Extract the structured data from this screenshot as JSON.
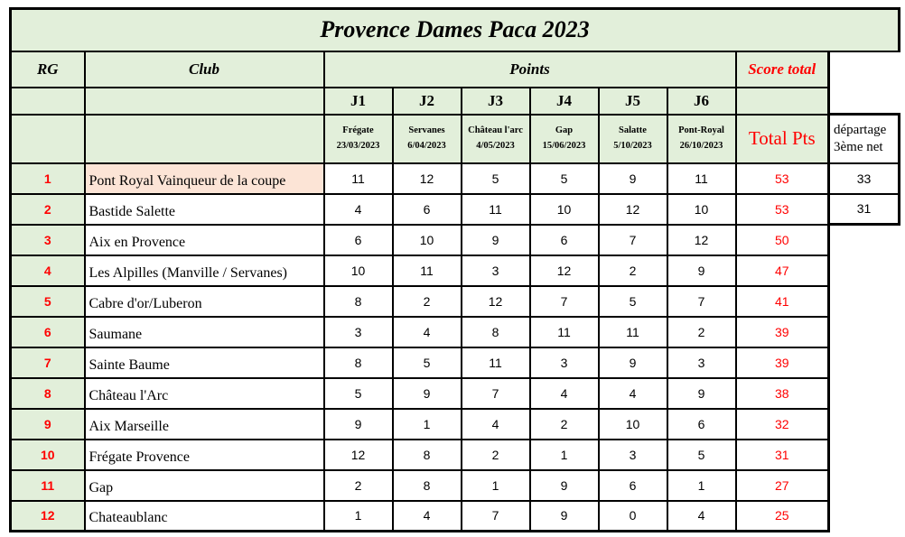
{
  "title": "Provence Dames Paca 2023",
  "colors": {
    "header_green": "#e2efda",
    "highlight_peach": "#fce4d6",
    "accent_red": "#ff0000",
    "border": "#000000"
  },
  "header": {
    "rg": "RG",
    "club": "Club",
    "points": "Points",
    "score_total": "Score total",
    "total_pts": "Total Pts",
    "tiebreak_line1": "départage",
    "tiebreak_line2": "3ème net",
    "rounds": [
      {
        "label": "J1",
        "venue": "Frégate",
        "date": "23/03/2023"
      },
      {
        "label": "J2",
        "venue": "Servanes",
        "date": "6/04/2023"
      },
      {
        "label": "J3",
        "venue": "Château l'arc",
        "date": "4/05/2023"
      },
      {
        "label": "J4",
        "venue": "Gap",
        "date": "15/06/2023"
      },
      {
        "label": "J5",
        "venue": "Salatte",
        "date": "5/10/2023"
      },
      {
        "label": "J6",
        "venue": "Pont-Royal",
        "date": "26/10/2023"
      }
    ]
  },
  "standings": [
    {
      "rank": "1",
      "club": "Pont Royal Vainqueur de la coupe",
      "points": [
        11,
        12,
        5,
        5,
        9,
        11
      ],
      "total": 53,
      "tiebreak": "33",
      "highlight": true
    },
    {
      "rank": "2",
      "club": "Bastide Salette",
      "points": [
        4,
        6,
        11,
        10,
        12,
        10
      ],
      "total": 53,
      "tiebreak": "31",
      "highlight": false
    },
    {
      "rank": "3",
      "club": "Aix en Provence",
      "points": [
        6,
        10,
        9,
        6,
        7,
        12
      ],
      "total": 50,
      "tiebreak": null,
      "highlight": false
    },
    {
      "rank": "4",
      "club": "Les Alpilles (Manville / Servanes)",
      "points": [
        10,
        11,
        3,
        12,
        2,
        9
      ],
      "total": 47,
      "tiebreak": null,
      "highlight": false
    },
    {
      "rank": "5",
      "club": "Cabre d'or/Luberon",
      "points": [
        8,
        2,
        12,
        7,
        5,
        7
      ],
      "total": 41,
      "tiebreak": null,
      "highlight": false
    },
    {
      "rank": "6",
      "club": "Saumane",
      "points": [
        3,
        4,
        8,
        11,
        11,
        2
      ],
      "total": 39,
      "tiebreak": null,
      "highlight": false
    },
    {
      "rank": "7",
      "club": "Sainte Baume",
      "points": [
        8,
        5,
        11,
        3,
        9,
        3
      ],
      "total": 39,
      "tiebreak": null,
      "highlight": false
    },
    {
      "rank": "8",
      "club": "Château l'Arc",
      "points": [
        5,
        9,
        7,
        4,
        4,
        9
      ],
      "total": 38,
      "tiebreak": null,
      "highlight": false
    },
    {
      "rank": "9",
      "club": "Aix Marseille",
      "points": [
        9,
        1,
        4,
        2,
        10,
        6
      ],
      "total": 32,
      "tiebreak": null,
      "highlight": false
    },
    {
      "rank": "10",
      "club": "Frégate Provence",
      "points": [
        12,
        8,
        2,
        1,
        3,
        5
      ],
      "total": 31,
      "tiebreak": null,
      "highlight": false
    },
    {
      "rank": "11",
      "club": "Gap",
      "points": [
        2,
        8,
        1,
        9,
        6,
        1
      ],
      "total": 27,
      "tiebreak": null,
      "highlight": false
    },
    {
      "rank": "12",
      "club": "Chateaublanc",
      "points": [
        1,
        4,
        7,
        9,
        0,
        4
      ],
      "total": 25,
      "tiebreak": null,
      "highlight": false
    }
  ]
}
